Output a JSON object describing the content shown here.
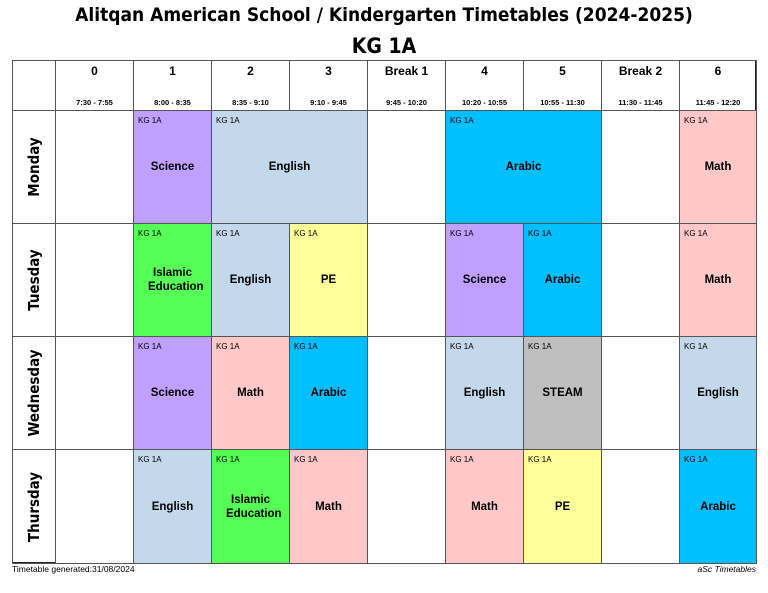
{
  "header": {
    "title": "Alitqan American School / Kindergarten Timetables (2024-2025)",
    "subtitle": "KG 1A"
  },
  "periods": [
    {
      "name": "0",
      "time": "7:30 - 7:55"
    },
    {
      "name": "1",
      "time": "8:00 - 8:35"
    },
    {
      "name": "2",
      "time": "8:35 - 9:10"
    },
    {
      "name": "3",
      "time": "9:10 - 9:45"
    },
    {
      "name": "Break 1",
      "time": "9:45 - 10:20"
    },
    {
      "name": "4",
      "time": "10:20 - 10:55"
    },
    {
      "name": "5",
      "time": "10:55 - 11:30"
    },
    {
      "name": "Break 2",
      "time": "11:30 - 11:45"
    },
    {
      "name": "6",
      "time": "11:45 - 12:20"
    }
  ],
  "colors": {
    "Science": "#bf9fff",
    "English": "#c3d8ea",
    "Arabic": "#00bfff",
    "Math": "#ffc8c8",
    "Islamic Education": "#55ff55",
    "PE": "#ffff99",
    "STEAM": "#bfbfbf"
  },
  "days": [
    {
      "name": "Monday",
      "cells": [
        null,
        {
          "group": "KG 1A",
          "subject": "Science",
          "span": 1
        },
        {
          "group": "KG 1A",
          "subject": "English",
          "span": 2
        },
        null,
        {
          "group": "KG 1A",
          "subject": "Arabic",
          "span": 2
        },
        null,
        {
          "group": "KG 1A",
          "subject": "Math",
          "span": 1
        }
      ]
    },
    {
      "name": "Tuesday",
      "cells": [
        null,
        {
          "group": "KG 1A",
          "subject": "Islamic Education",
          "span": 1
        },
        {
          "group": "KG 1A",
          "subject": "English",
          "span": 1
        },
        {
          "group": "KG 1A",
          "subject": "PE",
          "span": 1
        },
        null,
        {
          "group": "KG 1A",
          "subject": "Science",
          "span": 1
        },
        {
          "group": "KG 1A",
          "subject": "Arabic",
          "span": 1
        },
        null,
        {
          "group": "KG 1A",
          "subject": "Math",
          "span": 1
        }
      ]
    },
    {
      "name": "Wednesday",
      "cells": [
        null,
        {
          "group": "KG 1A",
          "subject": "Science",
          "span": 1
        },
        {
          "group": "KG 1A",
          "subject": "Math",
          "span": 1
        },
        {
          "group": "KG 1A",
          "subject": "Arabic",
          "span": 1
        },
        null,
        {
          "group": "KG 1A",
          "subject": "English",
          "span": 1
        },
        {
          "group": "KG 1A",
          "subject": "STEAM",
          "span": 1
        },
        null,
        {
          "group": "KG 1A",
          "subject": "English",
          "span": 1
        }
      ]
    },
    {
      "name": "Thursday",
      "cells": [
        null,
        {
          "group": "KG 1A",
          "subject": "English",
          "span": 1
        },
        {
          "group": "KG 1A",
          "subject": "Islamic Education",
          "span": 1
        },
        {
          "group": "KG 1A",
          "subject": "Math",
          "span": 1
        },
        null,
        {
          "group": "KG 1A",
          "subject": "Math",
          "span": 1
        },
        {
          "group": "KG 1A",
          "subject": "PE",
          "span": 1
        },
        null,
        {
          "group": "KG 1A",
          "subject": "Arabic",
          "span": 1
        }
      ]
    }
  ],
  "footer": {
    "left": "Timetable generated:31/08/2024",
    "right": "aSc Timetables"
  }
}
